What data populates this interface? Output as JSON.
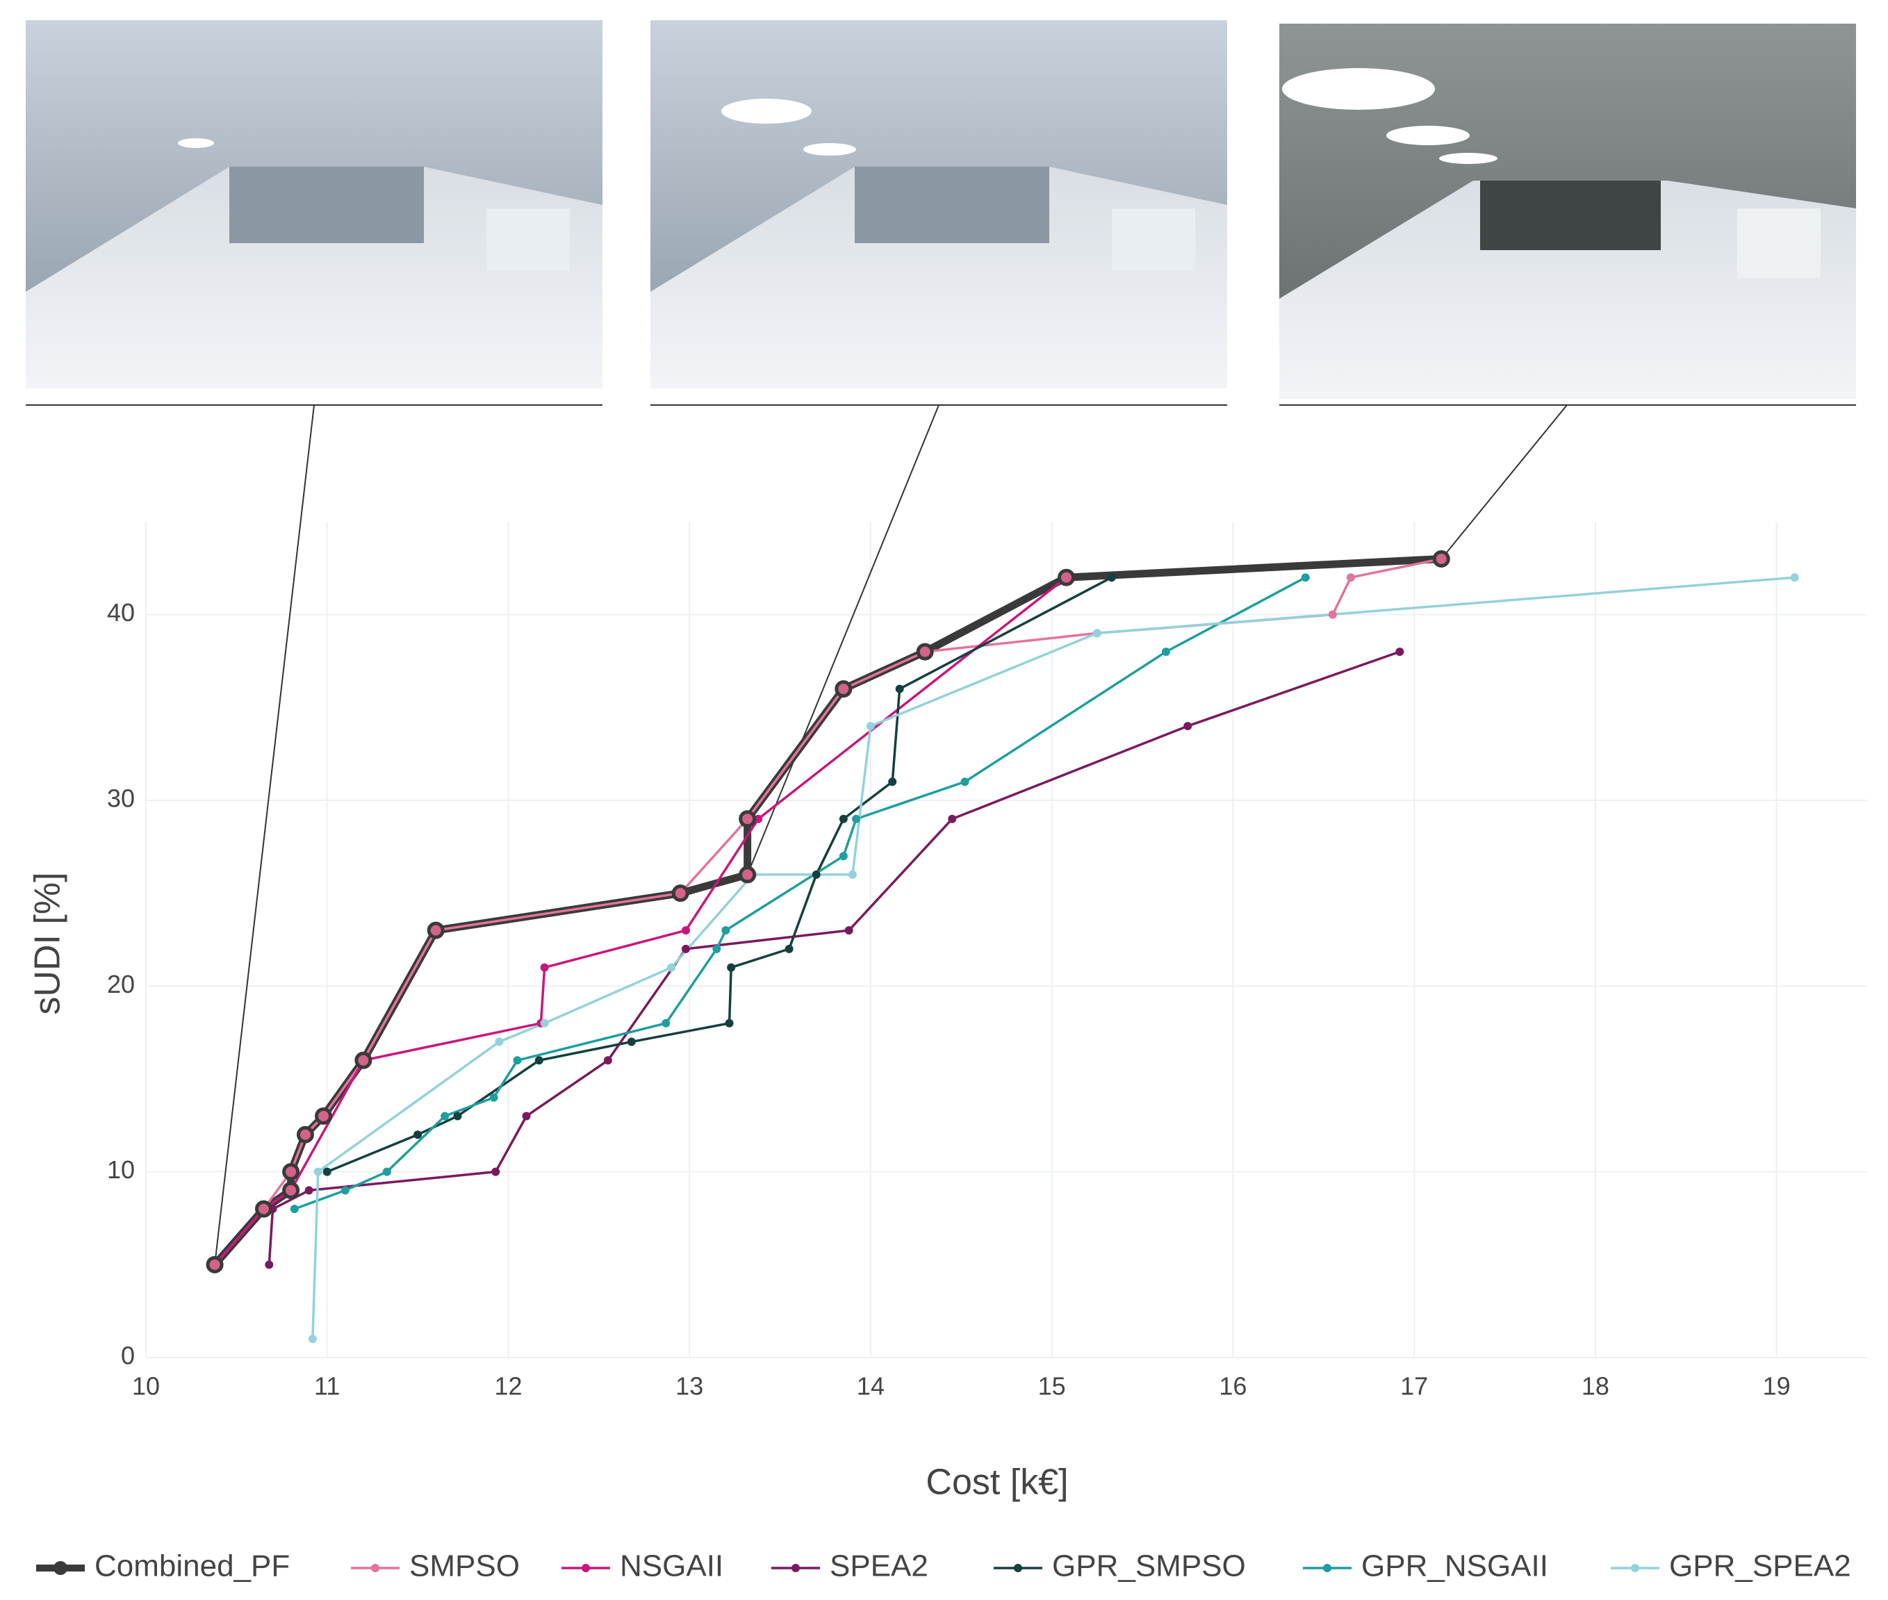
{
  "chart_data": {
    "type": "line",
    "xlabel": "Cost [k€]",
    "ylabel": "sUDI [%]",
    "xlim": [
      10,
      19.5
    ],
    "ylim": [
      0,
      45
    ],
    "xticks": [
      10,
      11,
      12,
      13,
      14,
      15,
      16,
      17,
      18,
      19
    ],
    "yticks": [
      0,
      10,
      20,
      30,
      40
    ],
    "grid": true,
    "legend": "bottom",
    "series": [
      {
        "name": "Combined_PF",
        "color": "#3a3a3a",
        "x": [
          10.38,
          10.65,
          10.8,
          10.8,
          10.88,
          10.98,
          11.2,
          11.6,
          12.95,
          13.32,
          13.32,
          13.85,
          14.3,
          15.08,
          17.15
        ],
        "values": [
          5,
          8,
          9,
          10,
          12,
          13,
          16,
          23,
          25,
          26,
          29,
          36,
          38,
          42,
          43
        ]
      },
      {
        "name": "SMPSO",
        "color": "#e4739d",
        "x": [
          10.38,
          10.65,
          10.8,
          10.88,
          10.98,
          11.2,
          11.6,
          12.95,
          13.32,
          13.85,
          14.3,
          15.25,
          16.55,
          16.65,
          17.15
        ],
        "values": [
          5,
          8,
          10,
          12,
          13,
          16,
          23,
          25,
          29,
          36,
          38,
          39,
          40,
          42,
          43
        ]
      },
      {
        "name": "NSGAII",
        "color": "#c8177c",
        "x": [
          10.38,
          10.65,
          10.8,
          11.2,
          12.18,
          12.2,
          12.98,
          13.38,
          15.08
        ],
        "values": [
          5,
          8,
          9,
          16,
          18,
          21,
          23,
          29,
          42
        ]
      },
      {
        "name": "SPEA2",
        "color": "#7a1a5e",
        "x": [
          10.68,
          10.7,
          10.9,
          11.93,
          12.1,
          12.55,
          12.98,
          13.88,
          14.45,
          15.75,
          16.92
        ],
        "values": [
          5,
          8,
          9,
          10,
          13,
          16,
          22,
          23,
          29,
          34,
          38
        ]
      },
      {
        "name": "GPR_SMPSO",
        "color": "#14403f",
        "x": [
          11,
          11.5,
          11.72,
          12.17,
          12.68,
          13.22,
          13.23,
          13.55,
          13.7,
          13.85,
          14.12,
          14.16,
          15.33
        ],
        "values": [
          10,
          12,
          13,
          16,
          17,
          18,
          21,
          22,
          26,
          29,
          31,
          36,
          42
        ]
      },
      {
        "name": "GPR_NSGAII",
        "color": "#1e9e9e",
        "x": [
          10.82,
          11.1,
          11.33,
          11.65,
          11.92,
          12.05,
          12.87,
          13.15,
          13.2,
          13.85,
          13.92,
          14.52,
          15.63,
          16.4
        ],
        "values": [
          8,
          9,
          10,
          13,
          14,
          16,
          18,
          22,
          23,
          27,
          29,
          31,
          38,
          42
        ]
      },
      {
        "name": "GPR_SPEA2",
        "color": "#93d2da",
        "x": [
          10.92,
          10.95,
          11.95,
          12.2,
          12.9,
          13.35,
          13.9,
          14.0,
          15.25,
          19.1
        ],
        "values": [
          1,
          10,
          17,
          18,
          21,
          26,
          26,
          34,
          39,
          42
        ]
      }
    ]
  }
}
